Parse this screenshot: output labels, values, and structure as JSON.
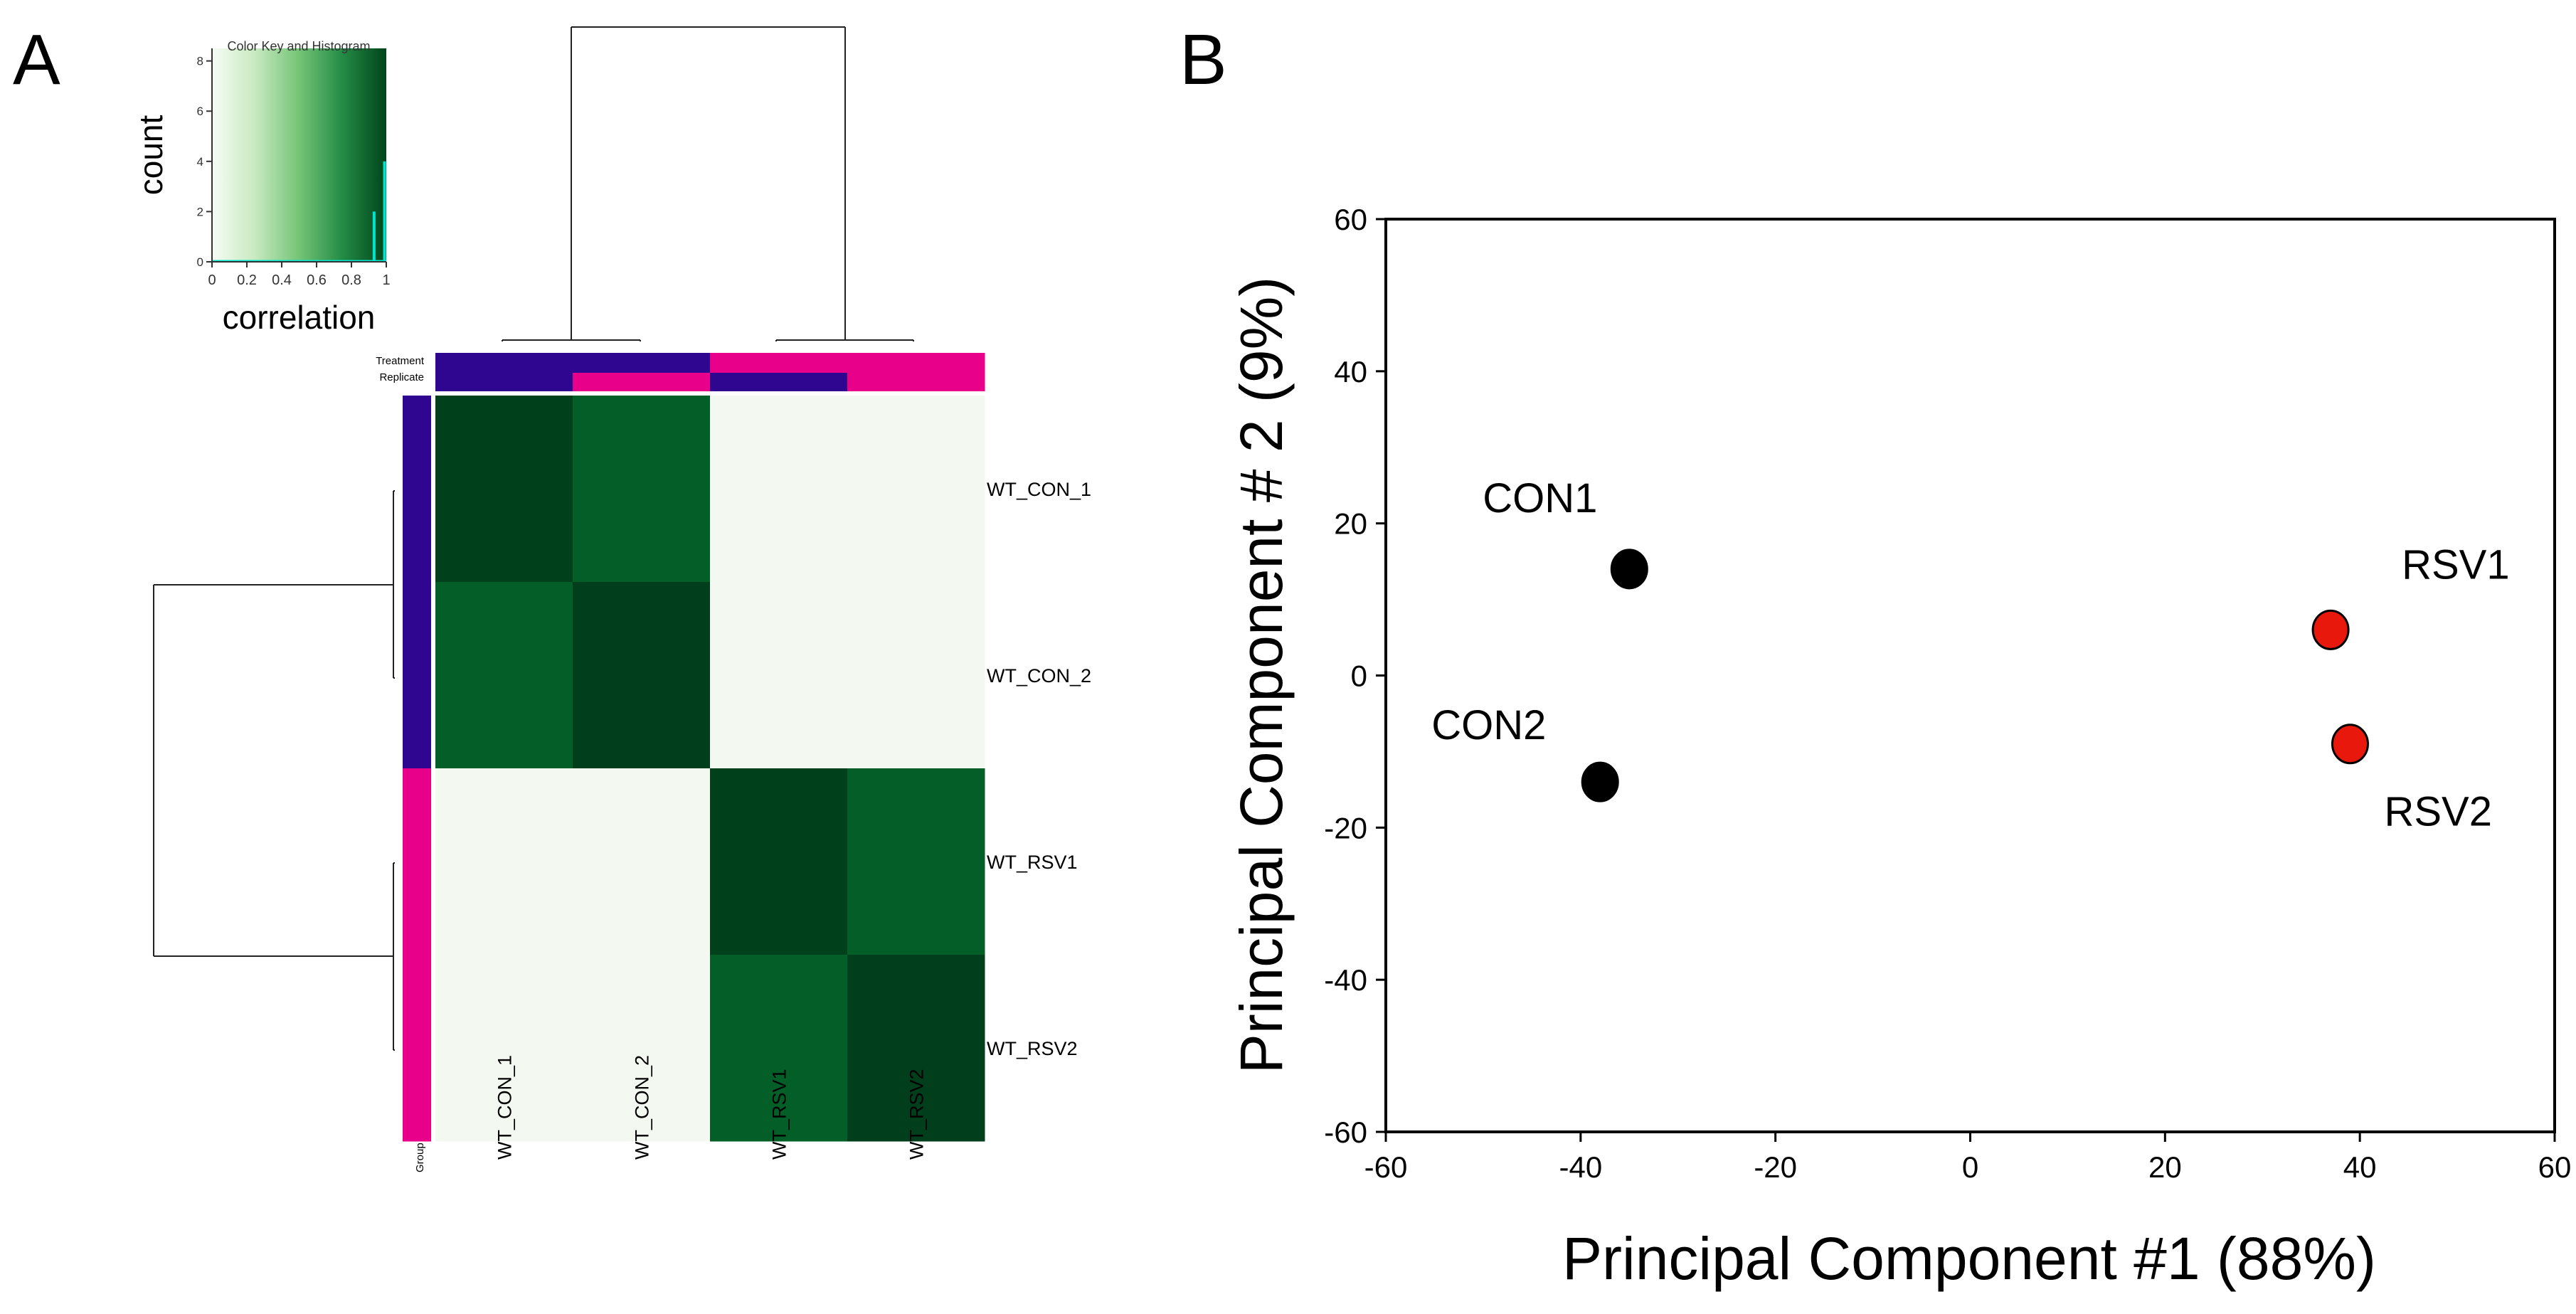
{
  "panels": {
    "a_label": "A",
    "b_label": "B"
  },
  "chart_data": [
    {
      "type": "heatmap",
      "title": "",
      "rows": [
        "WT_CON_1",
        "WT_CON_2",
        "WT_RSV1",
        "WT_RSV2"
      ],
      "columns": [
        "WT_CON_1",
        "WT_CON_2",
        "WT_RSV1",
        "WT_RSV2"
      ],
      "values": [
        [
          1.0,
          0.9,
          0.0,
          0.0
        ],
        [
          0.9,
          1.0,
          0.0,
          0.0
        ],
        [
          0.0,
          0.0,
          1.0,
          0.9
        ],
        [
          0.0,
          0.0,
          0.9,
          1.0
        ]
      ],
      "cell_colors": [
        [
          "#00401a",
          "#045e27",
          "#f3f9f1",
          "#f3f9f1"
        ],
        [
          "#045e27",
          "#003e1c",
          "#f3f9f1",
          "#f3f9f1"
        ],
        [
          "#f3f9f1",
          "#f3f9f1",
          "#00401a",
          "#045e27"
        ],
        [
          "#f3f9f1",
          "#f3f9f1",
          "#045e27",
          "#003e1c"
        ]
      ],
      "annotation_labels": {
        "treatment": "Treatment",
        "replicate": "Replicate",
        "group": "Group"
      },
      "annotation_colors": {
        "treatment": [
          "#2e0690",
          "#2e0690",
          "#e8008a",
          "#e8008a"
        ],
        "replicate": [
          "#2e0690",
          "#e8008a",
          "#2e0690",
          "#e8008a"
        ],
        "group": [
          "#2e0690",
          "#2e0690",
          "#e8008a",
          "#e8008a"
        ]
      },
      "color_key": {
        "title": "Color Key and Histogram",
        "xlabel": "correlation",
        "ylabel": "count",
        "x_ticks": [
          "0",
          "0.2",
          "0.4",
          "0.6",
          "0.8",
          "1"
        ],
        "y_ticks": [
          "0",
          "2",
          "4",
          "6",
          "8"
        ],
        "xlim": [
          0,
          1
        ],
        "ylim": [
          0,
          8.5
        ],
        "gradient": [
          "#f7fcf5",
          "#c7e9c0",
          "#74c476",
          "#238b45",
          "#00441b"
        ],
        "histogram_x": [
          0.93,
          0.99
        ],
        "histogram_y": [
          2,
          4
        ],
        "histogram_color": "#00e5d0"
      }
    },
    {
      "type": "scatter",
      "title": "",
      "xlabel": "Principal Component #1 (88%)",
      "ylabel": "Principal Component # 2 (9%)",
      "xlim": [
        -60,
        60
      ],
      "ylim": [
        -60,
        60
      ],
      "x_ticks": [
        "-60",
        "-40",
        "-20",
        "0",
        "20",
        "40",
        "60"
      ],
      "y_ticks": [
        "-60",
        "-40",
        "-20",
        "0",
        "20",
        "40",
        "60"
      ],
      "points": [
        {
          "label": "CON1",
          "x": -35,
          "y": 14,
          "color": "#000000"
        },
        {
          "label": "CON2",
          "x": -38,
          "y": -14,
          "color": "#000000"
        },
        {
          "label": "RSV1",
          "x": 37,
          "y": 6,
          "color": "#e8180c"
        },
        {
          "label": "RSV2",
          "x": 39,
          "y": -9,
          "color": "#e8180c"
        }
      ]
    }
  ]
}
